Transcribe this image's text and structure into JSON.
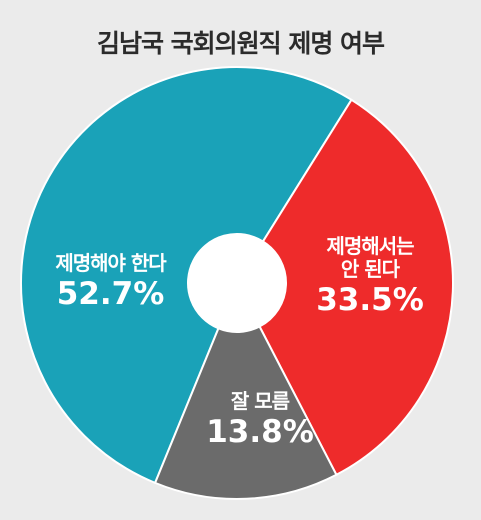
{
  "chart_data": {
    "type": "pie",
    "title": "김남국 국회의원직 제명 여부",
    "categories": [
      "제명해야 한다",
      "제명해서는 안 된다",
      "잘 모름"
    ],
    "values": [
      52.7,
      33.5,
      13.8
    ],
    "display": [
      "52.7%",
      "33.5%",
      "13.8%"
    ],
    "label_lines": [
      [
        "제명해야 한다"
      ],
      [
        "제명해서는",
        "안 된다"
      ],
      [
        "잘 모름"
      ]
    ],
    "colors": [
      "#1aa2b8",
      "#ee2b2b",
      "#6b6b6b"
    ],
    "background": "#ebebeb"
  }
}
